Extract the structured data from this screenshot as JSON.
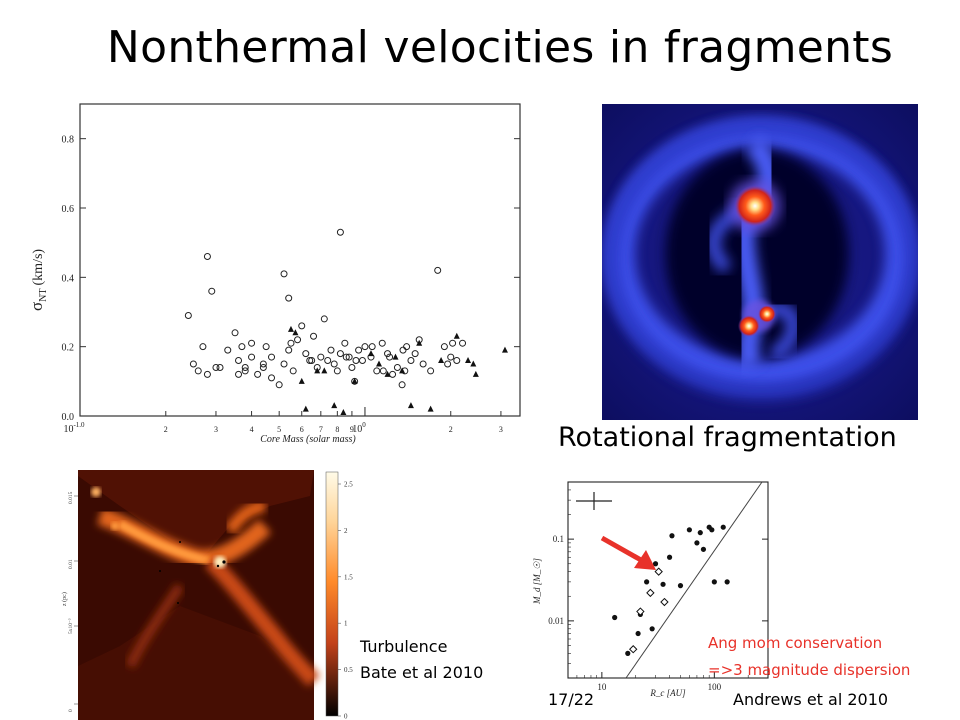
{
  "slide": {
    "title": "Nonthermal velocities in fragments",
    "page_number": "17/22"
  },
  "scatter_plot": {
    "ylabel_sym": "σ",
    "ylabel_sub": "NT",
    "ylabel_unit": "(km/s)",
    "xlabel": "Core Mass (solar mass)",
    "ytick_labels": [
      "0.0",
      "0.2",
      "0.4",
      "0.6",
      "0.8"
    ],
    "xtick_major_base": "10",
    "xtick_major_exps": [
      "-1.0",
      "0"
    ]
  },
  "sim_image_top": {
    "caption": "Rotational fragmentation"
  },
  "sim_image_bottom": {
    "caption_line1": "Turbulence",
    "caption_line2": "Bate et al 2010",
    "colorbar_ticks": [
      "2.5",
      "2",
      "1.5",
      "1",
      "0.5",
      "0"
    ],
    "ytick_labels": [
      "0.015",
      "0.01",
      "5x10⁻³",
      "0"
    ],
    "ylabel": "z (pc)"
  },
  "disk_plot": {
    "ylabel": "M_d [M_☉]",
    "xlabel": "R_c [AU]",
    "ytick_labels": [
      "0.1",
      "0.01"
    ],
    "xtick_labels": [
      "10",
      "100"
    ],
    "annotation_line1": "Ang mom conservation",
    "annotation_line2": "=>3 magnitude dispersion",
    "credit": "Andrews et al 2010",
    "accent_color": "#e8322a"
  },
  "chart_data": [
    {
      "type": "scatter",
      "title": "",
      "xlabel": "Core Mass (solar mass)",
      "ylabel": "σNT (km/s)",
      "xscale": "log",
      "xlim": [
        0.1,
        3.5
      ],
      "ylim": [
        0.0,
        0.9
      ],
      "series": [
        {
          "marker": "open-circle",
          "x": [
            0.24,
            0.27,
            0.25,
            0.26,
            0.28,
            0.28,
            0.3,
            0.33,
            0.35,
            0.36,
            0.37,
            0.38,
            0.4,
            0.4,
            0.42,
            0.44,
            0.45,
            0.47,
            0.5,
            0.52,
            0.54,
            0.55,
            0.56,
            0.58,
            0.6,
            0.62,
            0.64,
            0.66,
            0.68,
            0.7,
            0.72,
            0.74,
            0.76,
            0.78,
            0.8,
            0.82,
            0.85,
            0.88,
            0.9,
            0.92,
            0.95,
            0.98,
            1.0,
            1.05,
            1.1,
            1.15,
            1.2,
            1.25,
            1.3,
            1.35,
            1.4,
            1.5,
            1.55,
            1.6,
            1.7,
            1.8,
            1.9,
            2.0,
            2.1,
            2.2,
            0.29,
            0.38,
            0.52,
            0.54,
            0.86,
            1.16,
            0.31,
            0.36,
            0.44,
            0.47,
            0.65,
            0.82,
            0.93,
            1.36,
            1.38,
            1.95,
            2.03,
            1.45,
            1.22,
            1.06
          ],
          "y": [
            0.29,
            0.2,
            0.15,
            0.13,
            0.12,
            0.46,
            0.14,
            0.19,
            0.24,
            0.16,
            0.2,
            0.13,
            0.21,
            0.17,
            0.12,
            0.14,
            0.2,
            0.11,
            0.09,
            0.15,
            0.19,
            0.21,
            0.13,
            0.22,
            0.26,
            0.18,
            0.16,
            0.23,
            0.14,
            0.17,
            0.28,
            0.16,
            0.19,
            0.15,
            0.13,
            0.53,
            0.21,
            0.17,
            0.14,
            0.1,
            0.19,
            0.16,
            0.2,
            0.17,
            0.13,
            0.21,
            0.18,
            0.12,
            0.14,
            0.09,
            0.2,
            0.18,
            0.22,
            0.15,
            0.13,
            0.42,
            0.2,
            0.17,
            0.16,
            0.21,
            0.36,
            0.14,
            0.41,
            0.34,
            0.17,
            0.13,
            0.14,
            0.12,
            0.15,
            0.17,
            0.16,
            0.18,
            0.16,
            0.19,
            0.13,
            0.15,
            0.21,
            0.16,
            0.17,
            0.2
          ]
        },
        {
          "marker": "filled-triangle",
          "x": [
            0.55,
            0.57,
            0.6,
            0.62,
            0.68,
            0.72,
            0.78,
            0.84,
            0.92,
            1.05,
            1.12,
            1.2,
            1.28,
            1.35,
            1.45,
            1.55,
            1.7,
            1.85,
            2.1,
            2.3,
            2.4,
            2.45,
            3.1
          ],
          "y": [
            0.25,
            0.24,
            0.1,
            0.02,
            0.13,
            0.13,
            0.03,
            0.01,
            0.1,
            0.18,
            0.15,
            0.12,
            0.17,
            0.13,
            0.03,
            0.21,
            0.02,
            0.16,
            0.23,
            0.16,
            0.15,
            0.12,
            0.19
          ]
        }
      ]
    },
    {
      "type": "scatter",
      "title": "",
      "xlabel": "R_c [AU]",
      "ylabel": "M_d [M_☉]",
      "xscale": "log",
      "yscale": "log",
      "xlim": [
        5,
        300
      ],
      "ylim": [
        0.002,
        0.5
      ],
      "series": [
        {
          "marker": "filled-circle",
          "x": [
            13,
            17,
            21,
            22,
            25,
            28,
            30,
            35,
            40,
            42,
            50,
            60,
            70,
            75,
            80,
            90,
            95,
            100,
            120,
            130
          ],
          "y": [
            0.011,
            0.004,
            0.007,
            0.012,
            0.03,
            0.008,
            0.05,
            0.028,
            0.06,
            0.11,
            0.027,
            0.13,
            0.09,
            0.12,
            0.075,
            0.14,
            0.13,
            0.03,
            0.14,
            0.03
          ]
        },
        {
          "marker": "open-diamond",
          "x": [
            19,
            22,
            27,
            32,
            36
          ],
          "y": [
            0.0045,
            0.013,
            0.022,
            0.04,
            0.017
          ]
        }
      ]
    }
  ]
}
